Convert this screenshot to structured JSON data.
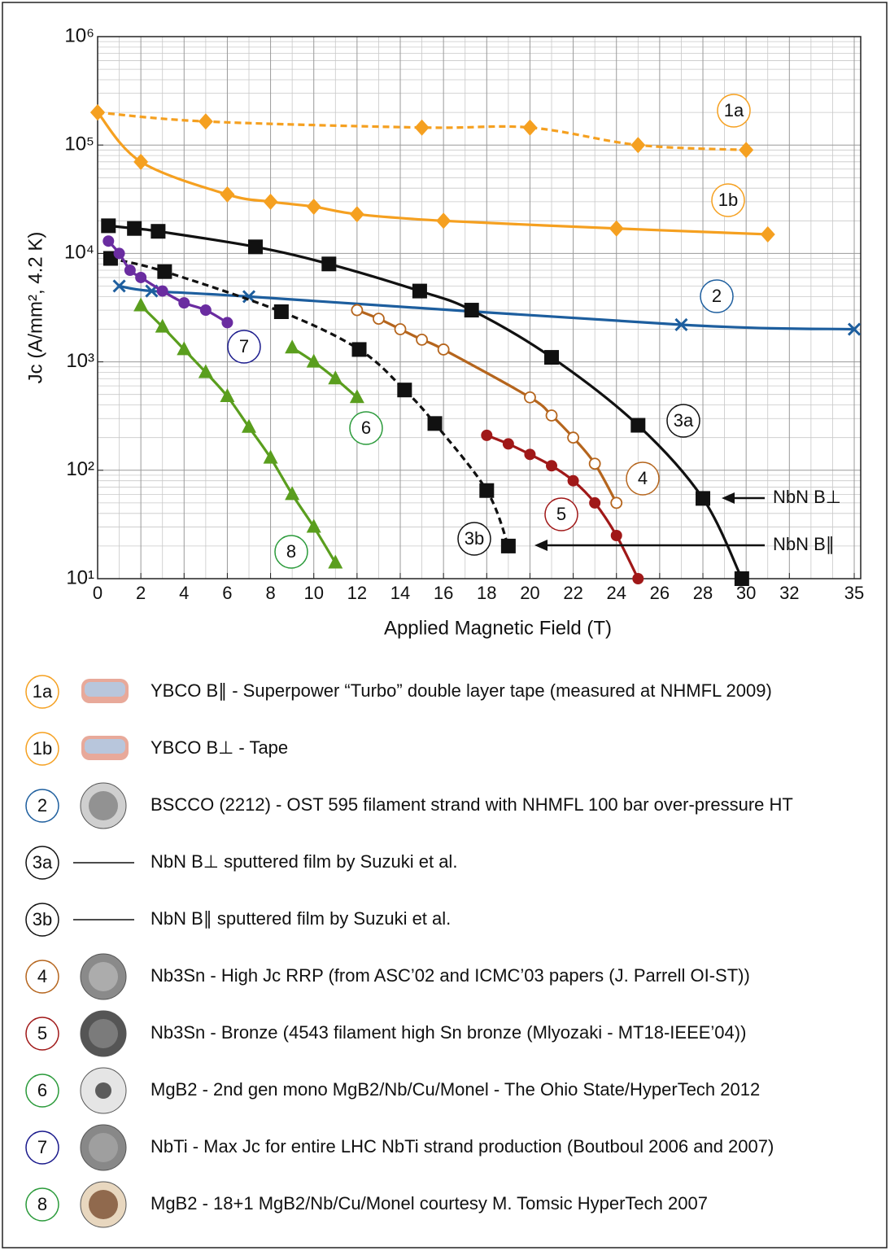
{
  "chart_data": {
    "type": "line",
    "x_label": "Applied Magnetic Field (T)",
    "y_label": "Jc (A/mm², 4.2 K)",
    "xlim": [
      0,
      35.3
    ],
    "xticks": [
      0,
      2,
      4,
      6,
      8,
      10,
      12,
      14,
      16,
      18,
      20,
      22,
      24,
      26,
      28,
      30,
      32,
      35
    ],
    "xminorticks": [
      1,
      3,
      5,
      7,
      9,
      11,
      13,
      15,
      17,
      19,
      21,
      23,
      25,
      27,
      29,
      31,
      33,
      34
    ],
    "ylim": [
      10,
      1000000
    ],
    "log_y": true,
    "grid": true,
    "yticks": [
      {
        "value": 10,
        "label": "10¹"
      },
      {
        "value": 100,
        "label": "10²"
      },
      {
        "value": 1000,
        "label": "10³"
      },
      {
        "value": 10000,
        "label": "10⁴"
      },
      {
        "value": 100000,
        "label": "10⁵"
      },
      {
        "value": 1000000,
        "label": "10⁶"
      }
    ],
    "yminorticks": [
      20,
      30,
      40,
      50,
      60,
      70,
      80,
      90,
      200,
      300,
      400,
      500,
      600,
      700,
      800,
      900,
      2000,
      3000,
      4000,
      5000,
      6000,
      7000,
      8000,
      9000,
      20000,
      30000,
      40000,
      50000,
      60000,
      70000,
      80000,
      90000,
      200000,
      300000,
      400000,
      500000,
      600000,
      700000,
      800000,
      900000
    ],
    "series": [
      {
        "name": "1a",
        "description": "YBCO B∥ - Superpower “Turbo” double layer tape (measured at NHMFL 2009)",
        "color": "#f5a020",
        "line_style": "dashed",
        "marker": "diamond",
        "x": [
          0,
          5,
          15,
          20,
          25,
          30
        ],
        "y": [
          200000,
          165000,
          145000,
          145000,
          100000,
          90000
        ]
      },
      {
        "name": "1b",
        "description": "YBCO B⊥ - Tape",
        "color": "#f5a020",
        "line_style": "solid",
        "marker": "diamond",
        "x": [
          0,
          2,
          6,
          8,
          10,
          12,
          16,
          24,
          31
        ],
        "y": [
          200000,
          70000,
          35000,
          30000,
          27000,
          23000,
          20000,
          17000,
          15000
        ]
      },
      {
        "name": "2",
        "description": "BSCCO (2212) - OST 595 filament strand with NHMFL 100 bar over-pressure HT",
        "color": "#1d5e9e",
        "line_style": "solid",
        "marker": "x",
        "x": [
          1,
          2.5,
          7,
          27,
          35
        ],
        "y": [
          5000,
          4500,
          4000,
          2200,
          2000
        ]
      },
      {
        "name": "3a",
        "description": "NbN B⊥ sputtered film by Suzuki et al.",
        "color": "#111111",
        "line_style": "solid",
        "marker": "square",
        "x": [
          0.5,
          1.7,
          2.8,
          7.3,
          10.7,
          14.9,
          17.3,
          21,
          25,
          28,
          29.8
        ],
        "y": [
          18000,
          17000,
          16000,
          11500,
          8000,
          4500,
          3000,
          1100,
          260,
          55,
          10
        ]
      },
      {
        "name": "3b",
        "description": "NbN B∥ sputtered film by Suzuki et al.",
        "color": "#111111",
        "line_style": "dashed",
        "marker": "square",
        "x": [
          0.6,
          3.1,
          8.5,
          12.1,
          14.2,
          15.6,
          18,
          19
        ],
        "y": [
          9000,
          6800,
          2900,
          1300,
          550,
          270,
          65,
          20
        ]
      },
      {
        "name": "4",
        "description": "Nb3Sn - High Jc RRP (from ASC’02 and ICMC’03 papers (J. Parrell OI-ST))",
        "color": "#b5651d",
        "line_style": "solid",
        "marker": "open-circle",
        "x": [
          12,
          13,
          14,
          15,
          16,
          20,
          21,
          22,
          23,
          24
        ],
        "y": [
          3000,
          2500,
          2000,
          1600,
          1300,
          470,
          320,
          200,
          115,
          50
        ]
      },
      {
        "name": "5",
        "description": "Nb3Sn - Bronze (4543 filament high Sn bronze (Mlyozaki - MT18-IEEE’04))",
        "color": "#a01818",
        "line_style": "solid",
        "marker": "circle",
        "x": [
          18,
          19,
          20,
          21,
          22,
          23,
          24,
          25
        ],
        "y": [
          210,
          175,
          140,
          110,
          80,
          50,
          25,
          10
        ]
      },
      {
        "name": "6",
        "description": "MgB2 - 2nd gen mono MgB2/Nb/Cu/Monel - The Ohio State/HyperTech 2012",
        "color": "#5a9e1e",
        "line_style": "solid",
        "marker": "triangle",
        "x": [
          9,
          10,
          11,
          12
        ],
        "y": [
          1350,
          1000,
          700,
          470
        ]
      },
      {
        "name": "7",
        "description": "NbTi - Max Jc for entire LHC NbTi strand production (Boutboul 2006 and 2007)",
        "color": "#6a2ca0",
        "line_style": "solid",
        "marker": "circle",
        "x": [
          0.5,
          1,
          1.5,
          2,
          3,
          4,
          5,
          6
        ],
        "y": [
          13000,
          10000,
          7000,
          6000,
          4500,
          3500,
          3000,
          2300
        ]
      },
      {
        "name": "8",
        "description": "MgB2 - 18+1 MgB2/Nb/Cu/Monel courtesy M. Tomsic HyperTech 2007",
        "color": "#5a9e1e",
        "line_style": "solid",
        "marker": "triangle",
        "x": [
          2,
          3,
          4,
          5,
          6,
          7,
          8,
          9,
          10,
          11
        ],
        "y": [
          3300,
          2100,
          1300,
          800,
          480,
          250,
          130,
          60,
          30,
          14
        ]
      }
    ],
    "annotations": [
      {
        "text": "NbN B⊥"
      },
      {
        "text": "NbN B∥"
      }
    ]
  }
}
